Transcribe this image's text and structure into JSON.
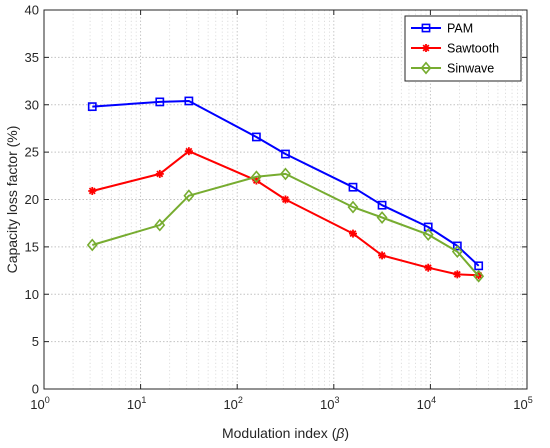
{
  "chart_data": {
    "type": "line",
    "xscale": "log",
    "xlim": [
      1,
      100000
    ],
    "ylim": [
      0,
      40
    ],
    "xlabel_prefix": "Modulation index (",
    "xlabel_symbol": "β",
    "xlabel_suffix": ")",
    "ylabel": "Capacity loss factor (%)",
    "xticks": [
      {
        "base": "10",
        "exp": "0"
      },
      {
        "base": "10",
        "exp": "1"
      },
      {
        "base": "10",
        "exp": "2"
      },
      {
        "base": "10",
        "exp": "3"
      },
      {
        "base": "10",
        "exp": "4"
      },
      {
        "base": "10",
        "exp": "5"
      }
    ],
    "yticks": [
      "0",
      "5",
      "10",
      "15",
      "20",
      "25",
      "30",
      "35",
      "40"
    ],
    "grid": true,
    "minor_grid": true,
    "legend_position": "top-right",
    "x": [
      3.16,
      15.8,
      31.6,
      158,
      316,
      1580,
      3160,
      9490,
      19000,
      31600
    ],
    "series": [
      {
        "name": "PAM",
        "color": "#0000ff",
        "marker": "square",
        "values": [
          29.8,
          30.3,
          30.4,
          26.6,
          24.8,
          21.3,
          19.4,
          17.1,
          15.1,
          13.0
        ]
      },
      {
        "name": "Sawtooth",
        "color": "#ff0000",
        "marker": "asterisk",
        "values": [
          20.9,
          22.7,
          25.1,
          22.0,
          20.0,
          16.4,
          14.1,
          12.8,
          12.1,
          12.0
        ]
      },
      {
        "name": "Sinwave",
        "color": "#77ac30",
        "marker": "diamond",
        "values": [
          15.2,
          17.3,
          20.4,
          22.4,
          22.7,
          19.2,
          18.1,
          16.3,
          14.5,
          11.9
        ]
      }
    ]
  }
}
